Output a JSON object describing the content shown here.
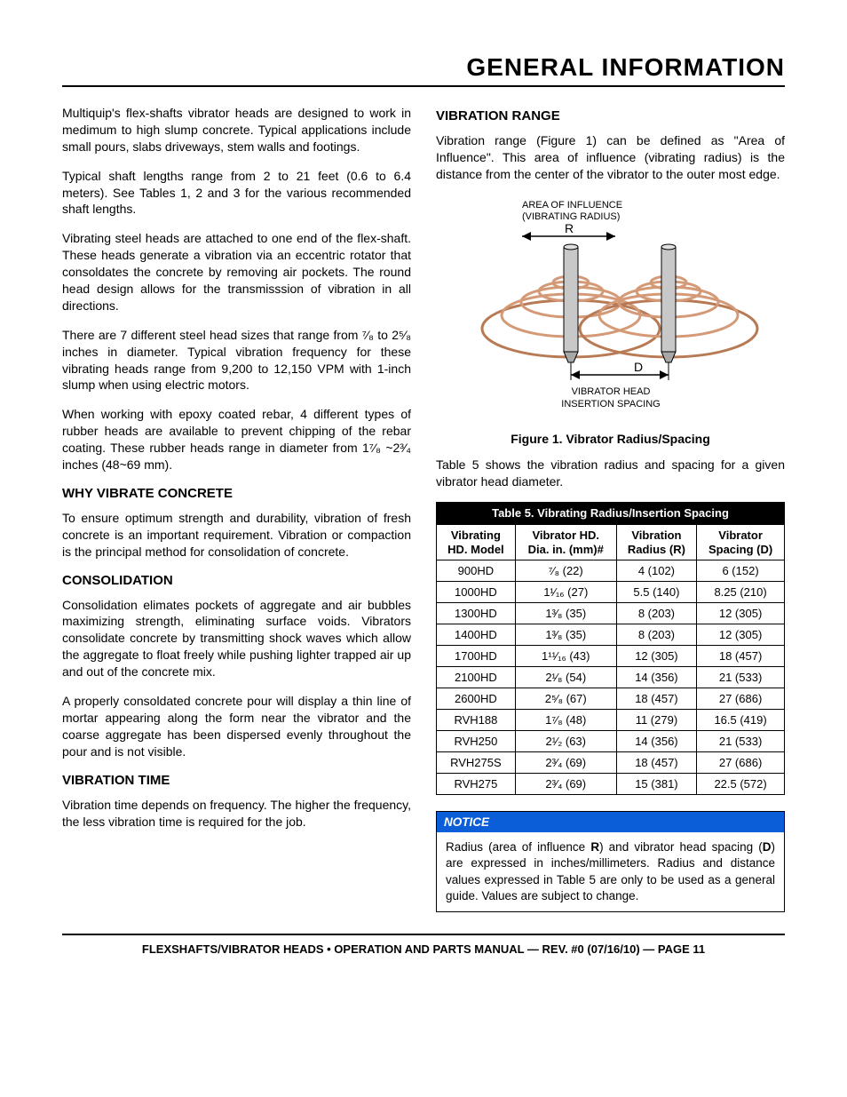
{
  "page_title": "GENERAL INFORMATION",
  "left": {
    "intro_p1": "Multiquip's flex-shafts vibrator heads are designed to work in medimum to high slump concrete. Typical applications include small pours, slabs driveways, stem walls and footings.",
    "intro_p2": "Typical shaft lengths range from 2 to 21 feet (0.6 to 6.4 meters). See Tables 1, 2 and 3 for the various recommended shaft lengths.",
    "intro_p3": "Vibrating steel heads are attached to one end of the flex-shaft. These heads generate a vibration via an eccentric rotator that consoldates the concrete by removing air pockets. The round head design allows for the transmisssion of vibration in all directions.",
    "intro_p4_before": "There are 7 different steel head sizes that range from ",
    "intro_p4_frac1": "⁷⁄₈",
    "intro_p4_mid": " to 2",
    "intro_p4_frac2": "⁵⁄₈",
    "intro_p4_after": " inches in diameter. Typical vibration frequency for these vibrating heads range from 9,200 to 12,150 VPM with 1-inch slump when using electric motors.",
    "intro_p5_before": "When working with epoxy coated rebar, 4 different types of rubber heads are available to prevent chipping of the rebar coating. These rubber heads range in diameter from 1",
    "intro_p5_frac1": "⁷⁄₈",
    "intro_p5_mid": " ~2",
    "intro_p5_frac2": "³⁄₄",
    "intro_p5_after": " inches (48~69 mm).",
    "why_h": "WHY VIBRATE CONCRETE",
    "why_p": "To ensure optimum strength and durability, vibration of fresh concrete is an important requirement. Vibration or compaction is the principal method for consolidation of concrete.",
    "cons_h": "CONSOLIDATION",
    "cons_p1": "Consolidation elimates pockets of aggregate and air bubbles maximizing strength, eliminating surface voids. Vibrators consolidate concrete by transmitting shock waves which allow the aggregate to float freely while pushing lighter trapped air up and out of the concrete mix.",
    "cons_p2": "A properly consoldated concrete pour will display a thin line of mortar appearing along the form near the vibrator and the coarse aggregate has been dispersed evenly throughout the pour and is not visible.",
    "vt_h": "VIBRATION TIME",
    "vt_p": "Vibration time depends on frequency. The higher the frequency, the less vibration time is required for the job."
  },
  "right": {
    "vr_h": "VIBRATION RANGE",
    "vr_p1": "Vibration range (Figure 1) can be defined as \"Area of Influence\". This area of influence (vibrating radius) is the distance from the center of the vibrator to the outer most edge.",
    "fig_area_label1": "AREA OF INFLUENCE",
    "fig_area_label2": "(VIBRATING RADIUS)",
    "fig_R": "R",
    "fig_D": "D",
    "fig_spacing1": "VIBRATOR HEAD",
    "fig_spacing2": "INSERTION SPACING",
    "fig_caption": "Figure 1. Vibrator Radius/Spacing",
    "vr_p2": "Table 5 shows the vibration radius and spacing for a given vibrator head diameter.",
    "table_title": "Table 5. Vibrating Radius/Insertion Spacing",
    "th_model1": "Vibrating",
    "th_model2": "HD. Model",
    "th_dia1": "Vibrator HD.",
    "th_dia2": "Dia. in. (mm)#",
    "th_rad1": "Vibration",
    "th_rad2": "Radius (R)",
    "th_sp1": "Vibrator",
    "th_sp2": "Spacing (D)",
    "rows": [
      {
        "model": "900HD",
        "dia": "⁷⁄₈ (22)",
        "rad": "4 (102)",
        "sp": "6 (152)"
      },
      {
        "model": "1000HD",
        "dia": "1¹⁄₁₆ (27)",
        "rad": "5.5 (140)",
        "sp": "8.25 (210)"
      },
      {
        "model": "1300HD",
        "dia": "1³⁄₈ (35)",
        "rad": "8 (203)",
        "sp": "12 (305)"
      },
      {
        "model": "1400HD",
        "dia": "1³⁄₈ (35)",
        "rad": "8 (203)",
        "sp": "12 (305)"
      },
      {
        "model": "1700HD",
        "dia": "1¹¹⁄₁₆ (43)",
        "rad": "12 (305)",
        "sp": "18 (457)"
      },
      {
        "model": "2100HD",
        "dia": "2¹⁄₈ (54)",
        "rad": "14 (356)",
        "sp": "21 (533)"
      },
      {
        "model": "2600HD",
        "dia": "2⁵⁄₈ (67)",
        "rad": "18 (457)",
        "sp": "27 (686)"
      },
      {
        "model": "RVH188",
        "dia": "1⁷⁄₈ (48)",
        "rad": "11 (279)",
        "sp": "16.5 (419)"
      },
      {
        "model": "RVH250",
        "dia": "2¹⁄₂ (63)",
        "rad": "14 (356)",
        "sp": "21 (533)"
      },
      {
        "model": "RVH275S",
        "dia": "2³⁄₄ (69)",
        "rad": "18 (457)",
        "sp": "27 (686)"
      },
      {
        "model": "RVH275",
        "dia": "2³⁄₄ (69)",
        "rad": "15 (381)",
        "sp": "22.5 (572)"
      }
    ],
    "notice_h": "NOTICE",
    "notice_body_1": "Radius (area of influence ",
    "notice_R": "R",
    "notice_body_2": ") and vibrator head spacing (",
    "notice_D": "D",
    "notice_body_3": ") are expressed in inches/millimeters. Radius and distance values expressed in Table 5 are only to be used as a general guide. Values are subject to change."
  },
  "footer": "FLEXSHAFTS/VIBRATOR HEADS • OPERATION AND PARTS MANUAL — REV. #0 (07/16/10) — PAGE 11",
  "colors": {
    "ring": "#d49a77",
    "ring_dark": "#b87a54",
    "notice_bg": "#0b5ed7",
    "head_fill": "#b9b9b9"
  }
}
